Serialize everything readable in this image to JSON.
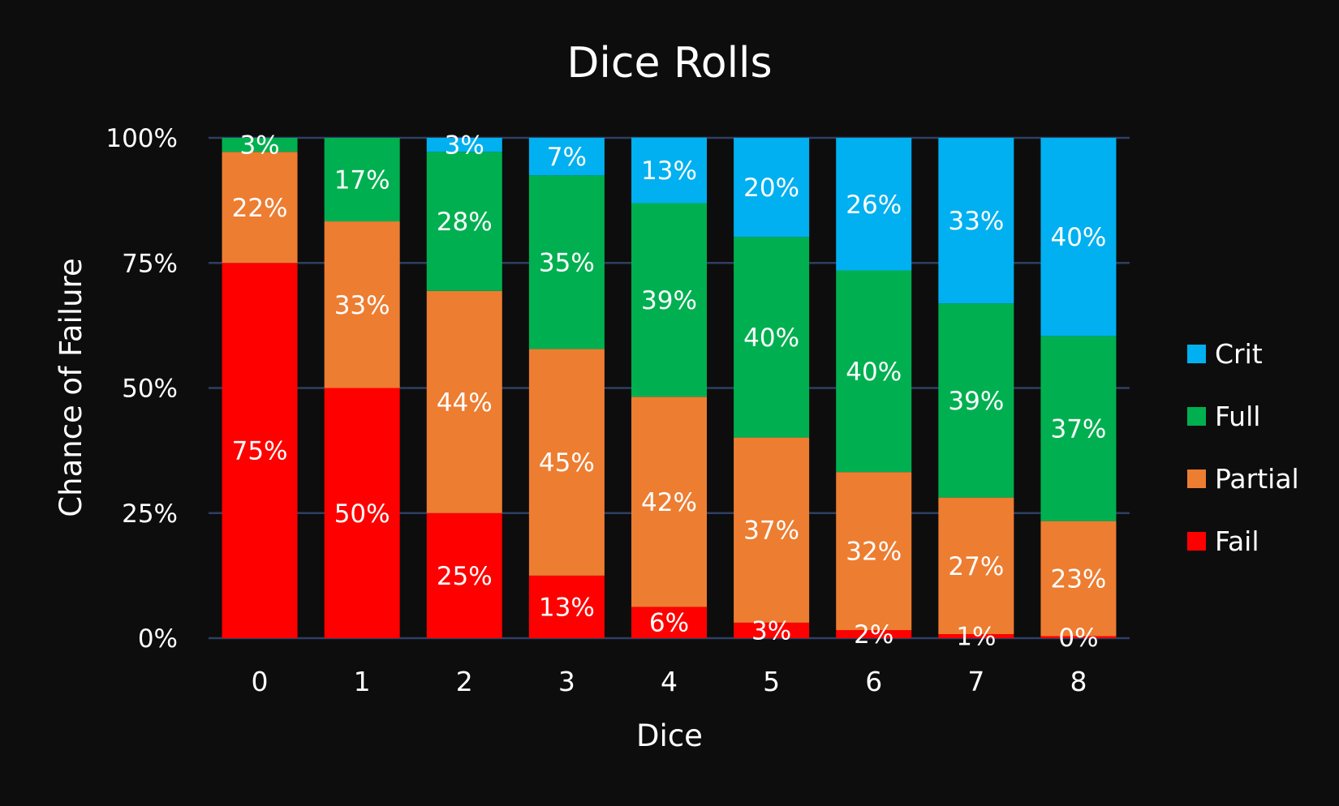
{
  "chart_data": {
    "type": "bar",
    "stacked": true,
    "title": "Dice Rolls",
    "xlabel": "Dice",
    "ylabel": "Chance of Failure",
    "categories": [
      "0",
      "1",
      "2",
      "3",
      "4",
      "5",
      "6",
      "7",
      "8"
    ],
    "ylim": [
      0,
      1
    ],
    "yticks": [
      "0%",
      "25%",
      "50%",
      "75%",
      "100%"
    ],
    "grid": true,
    "legend_position": "right",
    "series": [
      {
        "name": "Fail",
        "color": "#ff0000",
        "values": [
          0.75,
          0.5,
          0.25,
          0.125,
          0.0625,
          0.031,
          0.016,
          0.008,
          0.004
        ],
        "labels": [
          "75%",
          "50%",
          "25%",
          "13%",
          "6%",
          "3%",
          "2%",
          "1%",
          "0%"
        ]
      },
      {
        "name": "Partial",
        "color": "#ed7d31",
        "values": [
          0.222,
          0.333,
          0.444,
          0.453,
          0.42,
          0.37,
          0.316,
          0.273,
          0.23
        ],
        "labels": [
          "22%",
          "33%",
          "44%",
          "45%",
          "42%",
          "37%",
          "32%",
          "27%",
          "23%"
        ]
      },
      {
        "name": "Full",
        "color": "#00b050",
        "values": [
          0.028,
          0.167,
          0.278,
          0.347,
          0.387,
          0.401,
          0.403,
          0.388,
          0.37
        ],
        "labels": [
          "3%",
          "17%",
          "28%",
          "35%",
          "39%",
          "40%",
          "40%",
          "39%",
          "37%"
        ]
      },
      {
        "name": "Crit",
        "color": "#00b0f0",
        "values": [
          0,
          0,
          0.028,
          0.075,
          0.131,
          0.198,
          0.265,
          0.331,
          0.396
        ],
        "labels": [
          "",
          "",
          "3%",
          "7%",
          "13%",
          "20%",
          "26%",
          "33%",
          "40%"
        ]
      }
    ]
  }
}
